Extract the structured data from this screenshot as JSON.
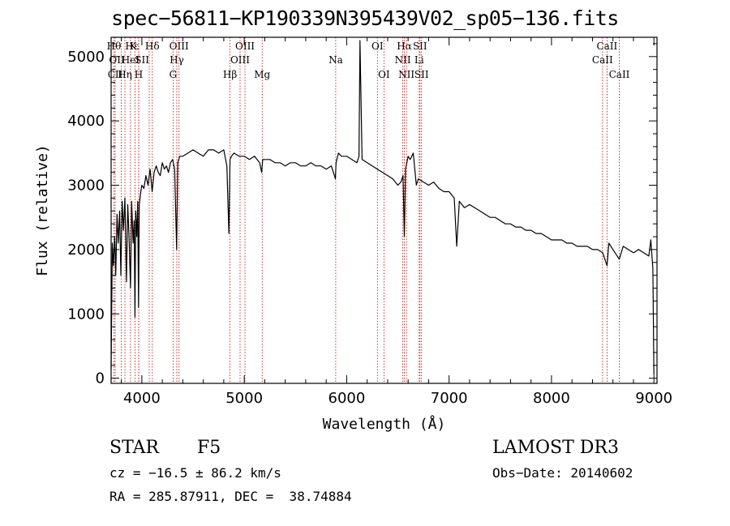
{
  "title": "spec−56811−KP190339N395439V02_sp05−136.fits",
  "footer": {
    "object_class": "STAR",
    "subclass": "F5",
    "survey": "LAMOST DR3",
    "cz": "cz = −16.5 ± 86.2 km/s",
    "obs_date": "Obs−Date: 20140602",
    "radec": "RA = 285.87911, DEC =  38.74884"
  },
  "chart_data": {
    "type": "line",
    "title": "spec−56811−KP190339N395439V02_sp05−136.fits",
    "xlabel": "Wavelength (Å)",
    "ylabel": "Flux (relative)",
    "xlim": [
      3700,
      9030
    ],
    "ylim": [
      -80,
      5300
    ],
    "xticks": [
      4000,
      5000,
      6000,
      7000,
      8000,
      9000
    ],
    "yticks": [
      0,
      1000,
      2000,
      3000,
      4000,
      5000
    ],
    "line_color": "#000000",
    "marker_color": "#cc0000",
    "series": [
      {
        "name": "flux",
        "x": [
          3700,
          3712,
          3722,
          3735,
          3745,
          3758,
          3770,
          3783,
          3795,
          3808,
          3820,
          3835,
          3850,
          3862,
          3875,
          3889,
          3900,
          3915,
          3925,
          3933,
          3940,
          3950,
          3960,
          3968,
          3975,
          3990,
          4000,
          4020,
          4040,
          4060,
          4080,
          4101,
          4120,
          4140,
          4160,
          4180,
          4200,
          4220,
          4240,
          4260,
          4280,
          4300,
          4320,
          4340,
          4350,
          4370,
          4400,
          4450,
          4500,
          4550,
          4600,
          4650,
          4700,
          4750,
          4800,
          4830,
          4850,
          4861,
          4875,
          4900,
          4950,
          5000,
          5050,
          5100,
          5150,
          5170,
          5180,
          5200,
          5250,
          5300,
          5350,
          5400,
          5450,
          5500,
          5550,
          5600,
          5650,
          5700,
          5750,
          5800,
          5850,
          5890,
          5896,
          5920,
          5950,
          6000,
          6050,
          6100,
          6120,
          6130,
          6150,
          6200,
          6250,
          6300,
          6350,
          6400,
          6450,
          6500,
          6530,
          6550,
          6563,
          6575,
          6600,
          6620,
          6650,
          6680,
          6700,
          6750,
          6800,
          6850,
          6900,
          6950,
          7000,
          7050,
          7075,
          7100,
          7150,
          7200,
          7250,
          7300,
          7350,
          7400,
          7450,
          7500,
          7550,
          7600,
          7650,
          7700,
          7750,
          7800,
          7850,
          7900,
          7950,
          8000,
          8050,
          8100,
          8150,
          8200,
          8250,
          8300,
          8350,
          8400,
          8450,
          8500,
          8542,
          8560,
          8600,
          8662,
          8700,
          8750,
          8800,
          8850,
          8900,
          8950,
          8970,
          8990,
          9000
        ],
        "values": [
          150,
          2100,
          1750,
          2200,
          1600,
          2550,
          2100,
          2600,
          1600,
          2750,
          2300,
          2800,
          1500,
          2700,
          2200,
          1400,
          2750,
          2100,
          2450,
          950,
          2600,
          2200,
          2750,
          1100,
          2700,
          2900,
          3000,
          2950,
          3150,
          3000,
          3250,
          2900,
          3200,
          3300,
          3200,
          3150,
          3350,
          3250,
          3300,
          3200,
          3350,
          3400,
          3250,
          2000,
          3350,
          3450,
          3450,
          3500,
          3550,
          3500,
          3450,
          3550,
          3550,
          3500,
          3550,
          3300,
          2250,
          3400,
          3450,
          3500,
          3450,
          3450,
          3400,
          3450,
          3350,
          3200,
          3400,
          3400,
          3400,
          3350,
          3350,
          3300,
          3350,
          3350,
          3300,
          3300,
          3350,
          3300,
          3300,
          3250,
          3300,
          3100,
          3350,
          3500,
          3450,
          3450,
          3400,
          3350,
          3450,
          5250,
          3400,
          3350,
          3300,
          3250,
          3200,
          3150,
          3100,
          3000,
          3050,
          3150,
          2200,
          3250,
          3450,
          3400,
          3500,
          3000,
          3100,
          3050,
          3000,
          3050,
          2950,
          2900,
          2900,
          2800,
          2050,
          2750,
          2650,
          2700,
          2650,
          2600,
          2550,
          2500,
          2500,
          2450,
          2400,
          2400,
          2350,
          2350,
          2300,
          2300,
          2250,
          2250,
          2200,
          2150,
          2150,
          2150,
          2100,
          2100,
          2050,
          2050,
          2050,
          2000,
          2000,
          1950,
          1750,
          2100,
          2000,
          1850,
          2050,
          2000,
          1950,
          2000,
          1950,
          1900,
          2150,
          1700,
          50
        ]
      }
    ],
    "line_markers": [
      {
        "label": "Hε",
        "x": 3970,
        "row": 0,
        "align": "end",
        "dx": 0
      },
      {
        "label": "Hθ",
        "x": 3798,
        "row": 0,
        "align": "end",
        "dx": 0
      },
      {
        "label": "K",
        "x": 3934,
        "row": 0,
        "align": "end",
        "dx": 2
      },
      {
        "label": "Hδ",
        "x": 4102,
        "row": 0,
        "align": "middle",
        "dx": 0
      },
      {
        "label": "OII",
        "x": 3727,
        "row": 1,
        "align": "start",
        "dx": -6
      },
      {
        "label": "HeI",
        "x": 3889,
        "row": 1,
        "align": "middle",
        "dx": 0
      },
      {
        "label": "SII",
        "x": 4072,
        "row": 1,
        "align": "end",
        "dx": 0
      },
      {
        "label": "OIII",
        "x": 4363,
        "row": 0,
        "align": "middle",
        "dx": 0
      },
      {
        "label": "Hγ",
        "x": 4341,
        "row": 1,
        "align": "middle",
        "dx": 0
      },
      {
        "label": "G",
        "x": 4305,
        "row": 2,
        "align": "middle",
        "dx": 0
      },
      {
        "label": "CII",
        "x": 3740,
        "row": 2,
        "align": "middle",
        "dx": 0
      },
      {
        "label": "Hη",
        "x": 3835,
        "row": 2,
        "align": "middle",
        "dx": 0
      },
      {
        "label": "H",
        "x": 3969,
        "row": 2,
        "align": "middle",
        "dx": 0
      },
      {
        "label": "OIII",
        "x": 5007,
        "row": 0,
        "align": "middle",
        "dx": 0
      },
      {
        "label": "OIII",
        "x": 4959,
        "row": 1,
        "align": "middle",
        "dx": 0
      },
      {
        "label": "Hβ",
        "x": 4861,
        "row": 2,
        "align": "middle",
        "dx": 0
      },
      {
        "label": "Mg",
        "x": 5175,
        "row": 2,
        "align": "middle",
        "dx": 0
      },
      {
        "label": "Na",
        "x": 5893,
        "row": 1,
        "align": "middle",
        "dx": 0
      },
      {
        "label": "OI",
        "x": 6300,
        "row": 0,
        "align": "middle",
        "dx": 0
      },
      {
        "label": "OI",
        "x": 6364,
        "row": 2,
        "align": "middle",
        "dx": 0
      },
      {
        "label": "Hα",
        "x": 6563,
        "row": 0,
        "align": "middle",
        "dx": 0
      },
      {
        "label": "SII",
        "x": 6716,
        "row": 0,
        "align": "middle",
        "dx": 0
      },
      {
        "label": "NII",
        "x": 6548,
        "row": 1,
        "align": "middle",
        "dx": 0
      },
      {
        "label": "Li",
        "x": 6708,
        "row": 1,
        "align": "middle",
        "dx": 0
      },
      {
        "label": "NII",
        "x": 6584,
        "row": 2,
        "align": "middle",
        "dx": 0
      },
      {
        "label": "SII",
        "x": 6731,
        "row": 2,
        "align": "middle",
        "dx": 0
      },
      {
        "label": "CaII",
        "x": 8542,
        "row": 0,
        "align": "middle",
        "dx": 0
      },
      {
        "label": "CaII",
        "x": 8498,
        "row": 1,
        "align": "middle",
        "dx": 0
      },
      {
        "label": "CaII",
        "x": 8662,
        "row": 2,
        "align": "middle",
        "dx": 0
      }
    ]
  }
}
